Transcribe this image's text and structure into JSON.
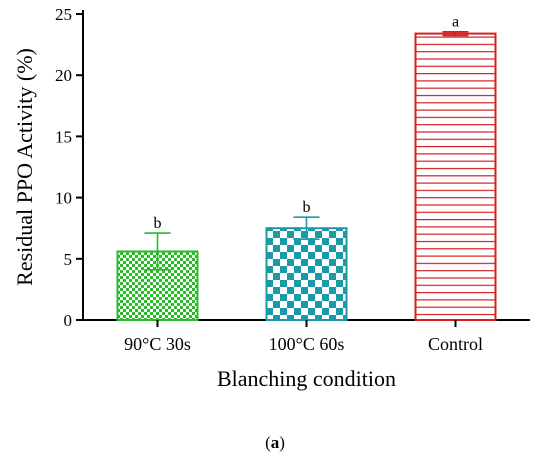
{
  "chart_data": {
    "type": "bar",
    "categories": [
      "90°C 30s",
      "100°C 60s",
      "Control"
    ],
    "values": [
      5.6,
      7.5,
      23.4
    ],
    "errors": [
      1.5,
      0.9,
      0.15
    ],
    "significance": [
      "b",
      "b",
      "a"
    ],
    "colors": [
      "#2db82d",
      "#1a9aa6",
      "#d42020"
    ],
    "patterns": [
      "fine-checker",
      "checker",
      "horizontal-lines"
    ],
    "xlabel": "Blanching condition",
    "ylabel": "Residual PPO Activity (%)",
    "ylim": [
      0,
      25
    ],
    "yticks": [
      0,
      5,
      10,
      15,
      20,
      25
    ],
    "grid": false
  },
  "caption": {
    "open": "(",
    "label": "a",
    "close": ")"
  }
}
